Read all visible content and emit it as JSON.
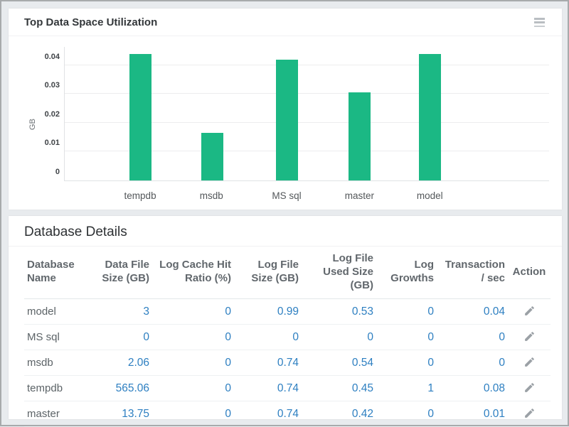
{
  "chart_panel": {
    "title": "Top Data Space Utilization",
    "menu_icon": "hamburger-menu-icon"
  },
  "chart_data": {
    "type": "bar",
    "title": "Top Data Space Utilization",
    "categories": [
      "tempdb",
      "msdb",
      "MS sql",
      "master",
      "model"
    ],
    "values": [
      0.044,
      0.0165,
      0.042,
      0.0305,
      0.044
    ],
    "xlabel": "",
    "ylabel": "GB",
    "yticks": [
      0,
      0.01,
      0.02,
      0.03,
      0.04
    ],
    "ytick_labels": [
      "0",
      "0.01",
      "0.02",
      "0.03",
      "0.04"
    ],
    "ylim": [
      0,
      0.0464
    ],
    "grid": true,
    "legend": false,
    "bar_color": "#1bb884"
  },
  "table_panel": {
    "title": "Database Details",
    "columns": [
      "Database Name",
      "Data File Size (GB)",
      "Log Cache Hit Ratio (%)",
      "Log File Size (GB)",
      "Log File Used Size (GB)",
      "Log Growths",
      "Transaction / sec",
      "Action"
    ],
    "rows": [
      {
        "cells": [
          "model",
          "3",
          "0",
          "0.99",
          "0.53",
          "0",
          "0.04"
        ]
      },
      {
        "cells": [
          "MS sql",
          "0",
          "0",
          "0",
          "0",
          "0",
          "0"
        ]
      },
      {
        "cells": [
          "msdb",
          "2.06",
          "0",
          "0.74",
          "0.54",
          "0",
          "0"
        ]
      },
      {
        "cells": [
          "tempdb",
          "565.06",
          "0",
          "0.74",
          "0.45",
          "1",
          "0.08"
        ]
      },
      {
        "cells": [
          "master",
          "13.75",
          "0",
          "0.74",
          "0.42",
          "0",
          "0.01"
        ]
      }
    ],
    "action_icon": "pencil-edit-icon",
    "number_color": "#2d7fc1"
  }
}
